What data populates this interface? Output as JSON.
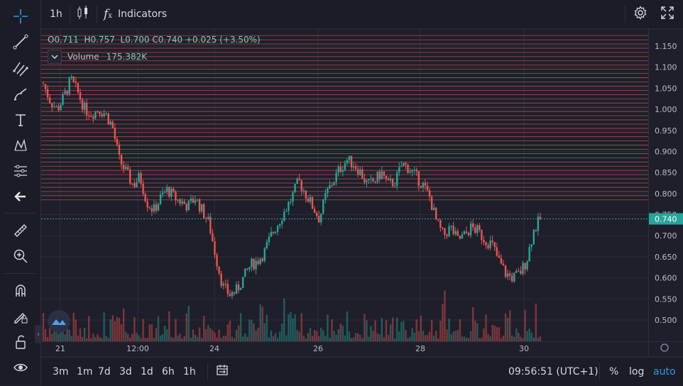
{
  "toolbar": {
    "interval": "1h",
    "indicators_label": "Indicators"
  },
  "legend": {
    "o_label": "O",
    "o": "0.711",
    "h_label": "H",
    "h": "0.757",
    "l_label": "L",
    "l": "0.700",
    "c_label": "C",
    "c": "0.740",
    "change": "+0.025 (+3.50%)",
    "volume_label": "Volume",
    "volume_value": "175.382K"
  },
  "left_tools": [
    "crosshair-icon",
    "trend-line-icon",
    "fib-retracement-icon",
    "brush-icon",
    "text-icon",
    "pattern-icon",
    "measure-lines-icon",
    "back-arrow-icon",
    "ruler-icon",
    "zoom-in-icon",
    "magnet-icon",
    "lock-drawing-icon",
    "unlock-icon",
    "eye-icon"
  ],
  "bottom": {
    "ranges": [
      "3m",
      "1m",
      "7d",
      "3d",
      "1d",
      "6h",
      "1h"
    ],
    "time": "09:56:51 (UTC+1)",
    "percent": "%",
    "log": "log",
    "auto": "auto"
  },
  "colors": {
    "up": "#26a69a",
    "down": "#ef5350",
    "background": "#1e1f2a",
    "price_line": "#26a69a",
    "level_line": "#c8554f",
    "auto_accent": "#2e9be6"
  },
  "chart_data": {
    "type": "candlestick",
    "y_ticks": [
      "1.150",
      "1.100",
      "1.050",
      "1.000",
      "0.950",
      "0.900",
      "0.850",
      "0.800",
      "0.750",
      "0.700",
      "0.650",
      "0.600",
      "0.550",
      "0.500"
    ],
    "x_ticks": [
      "21",
      "12:00",
      "24",
      "26",
      "28",
      "30"
    ],
    "ylim": [
      0.48,
      1.18
    ],
    "current_price": "0.740",
    "horizontal_levels": [
      1.175,
      1.165,
      1.155,
      1.145,
      1.135,
      1.125,
      1.115,
      1.105,
      1.095,
      1.085,
      1.075,
      1.065,
      1.055,
      1.045,
      1.035,
      1.025,
      1.015,
      1.005,
      0.995,
      0.985,
      0.975,
      0.965,
      0.955,
      0.945,
      0.935,
      0.925,
      0.915,
      0.905,
      0.895,
      0.885,
      0.875,
      0.865,
      0.855,
      0.845,
      0.835,
      0.825,
      0.815,
      0.805,
      0.795,
      0.785
    ],
    "close_path": [
      1.06,
      1.02,
      1.0,
      1.03,
      1.07,
      1.04,
      1.0,
      0.99,
      1.0,
      0.99,
      0.96,
      0.88,
      0.85,
      0.82,
      0.84,
      0.78,
      0.76,
      0.79,
      0.81,
      0.79,
      0.78,
      0.77,
      0.79,
      0.76,
      0.73,
      0.65,
      0.58,
      0.56,
      0.57,
      0.6,
      0.63,
      0.64,
      0.66,
      0.7,
      0.73,
      0.76,
      0.79,
      0.83,
      0.8,
      0.77,
      0.74,
      0.8,
      0.83,
      0.86,
      0.88,
      0.87,
      0.85,
      0.82,
      0.83,
      0.85,
      0.82,
      0.83,
      0.87,
      0.86,
      0.84,
      0.82,
      0.79,
      0.73,
      0.7,
      0.72,
      0.69,
      0.7,
      0.72,
      0.71,
      0.69,
      0.68,
      0.64,
      0.61,
      0.6,
      0.61,
      0.64,
      0.71,
      0.74
    ],
    "volume_series": "yes",
    "volume_scale_max": 175.382
  }
}
